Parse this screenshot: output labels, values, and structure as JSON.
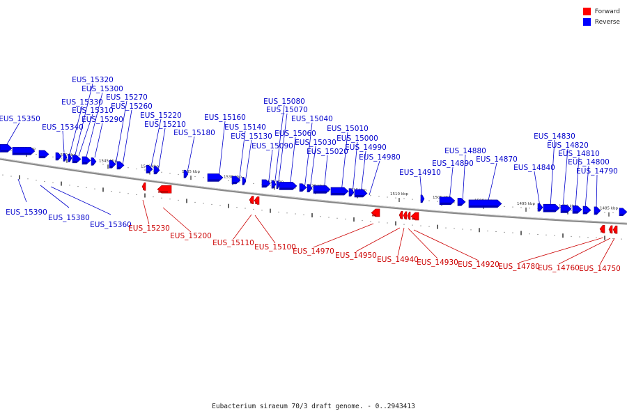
{
  "legend": [
    {
      "label": "Forward",
      "color": "#ff0000"
    },
    {
      "label": "Reverse",
      "color": "#0000ff"
    }
  ],
  "caption": "Eubacterium siraeum 70/3 draft genome. - 0..2943413",
  "colors": {
    "forward": "#ff0000",
    "forward_dark": "#a00000",
    "reverse": "#0000ff",
    "reverse_dark": "#000090",
    "forward_label": "#cc0000",
    "reverse_label": "#0000cc",
    "backbone": "#888888"
  },
  "scale_ticks": [
    "1555 kbp",
    "1550 kbp",
    "1545 kbp",
    "1540 kbp",
    "1535 kbp",
    "1530 kbp",
    "1525 kbp",
    "1520 kbp",
    "1515 kbp",
    "1510 kbp",
    "1505 kbp",
    "1500 kbp",
    "1495 kbp",
    "1490 kbp",
    "1485 kbp"
  ],
  "reverse_genes": [
    "EUS_15350",
    "EUS_15340",
    "EUS_15330",
    "EUS_15320",
    "EUS_15310",
    "EUS_15300",
    "EUS_15290",
    "EUS_15270",
    "EUS_15260",
    "EUS_15220",
    "EUS_15210",
    "EUS_15180",
    "EUS_15160",
    "EUS_15140",
    "EUS_15130",
    "EUS_15090",
    "EUS_15080",
    "EUS_15070",
    "EUS_15060",
    "EUS_15040",
    "EUS_15030",
    "EUS_15020",
    "EUS_15010",
    "EUS_15000",
    "EUS_14990",
    "EUS_14980",
    "EUS_14910",
    "EUS_14890",
    "EUS_14880",
    "EUS_14870",
    "EUS_14840",
    "EUS_14830",
    "EUS_14820",
    "EUS_14810",
    "EUS_14800",
    "EUS_14790",
    "EUS_15390",
    "EUS_15380",
    "EUS_15360"
  ],
  "forward_genes": [
    "EUS_15230",
    "EUS_15200",
    "EUS_15110",
    "EUS_15100",
    "EUS_14970",
    "EUS_14950",
    "EUS_14940",
    "EUS_14930",
    "EUS_14920",
    "EUS_14780",
    "EUS_14760",
    "EUS_14750"
  ]
}
